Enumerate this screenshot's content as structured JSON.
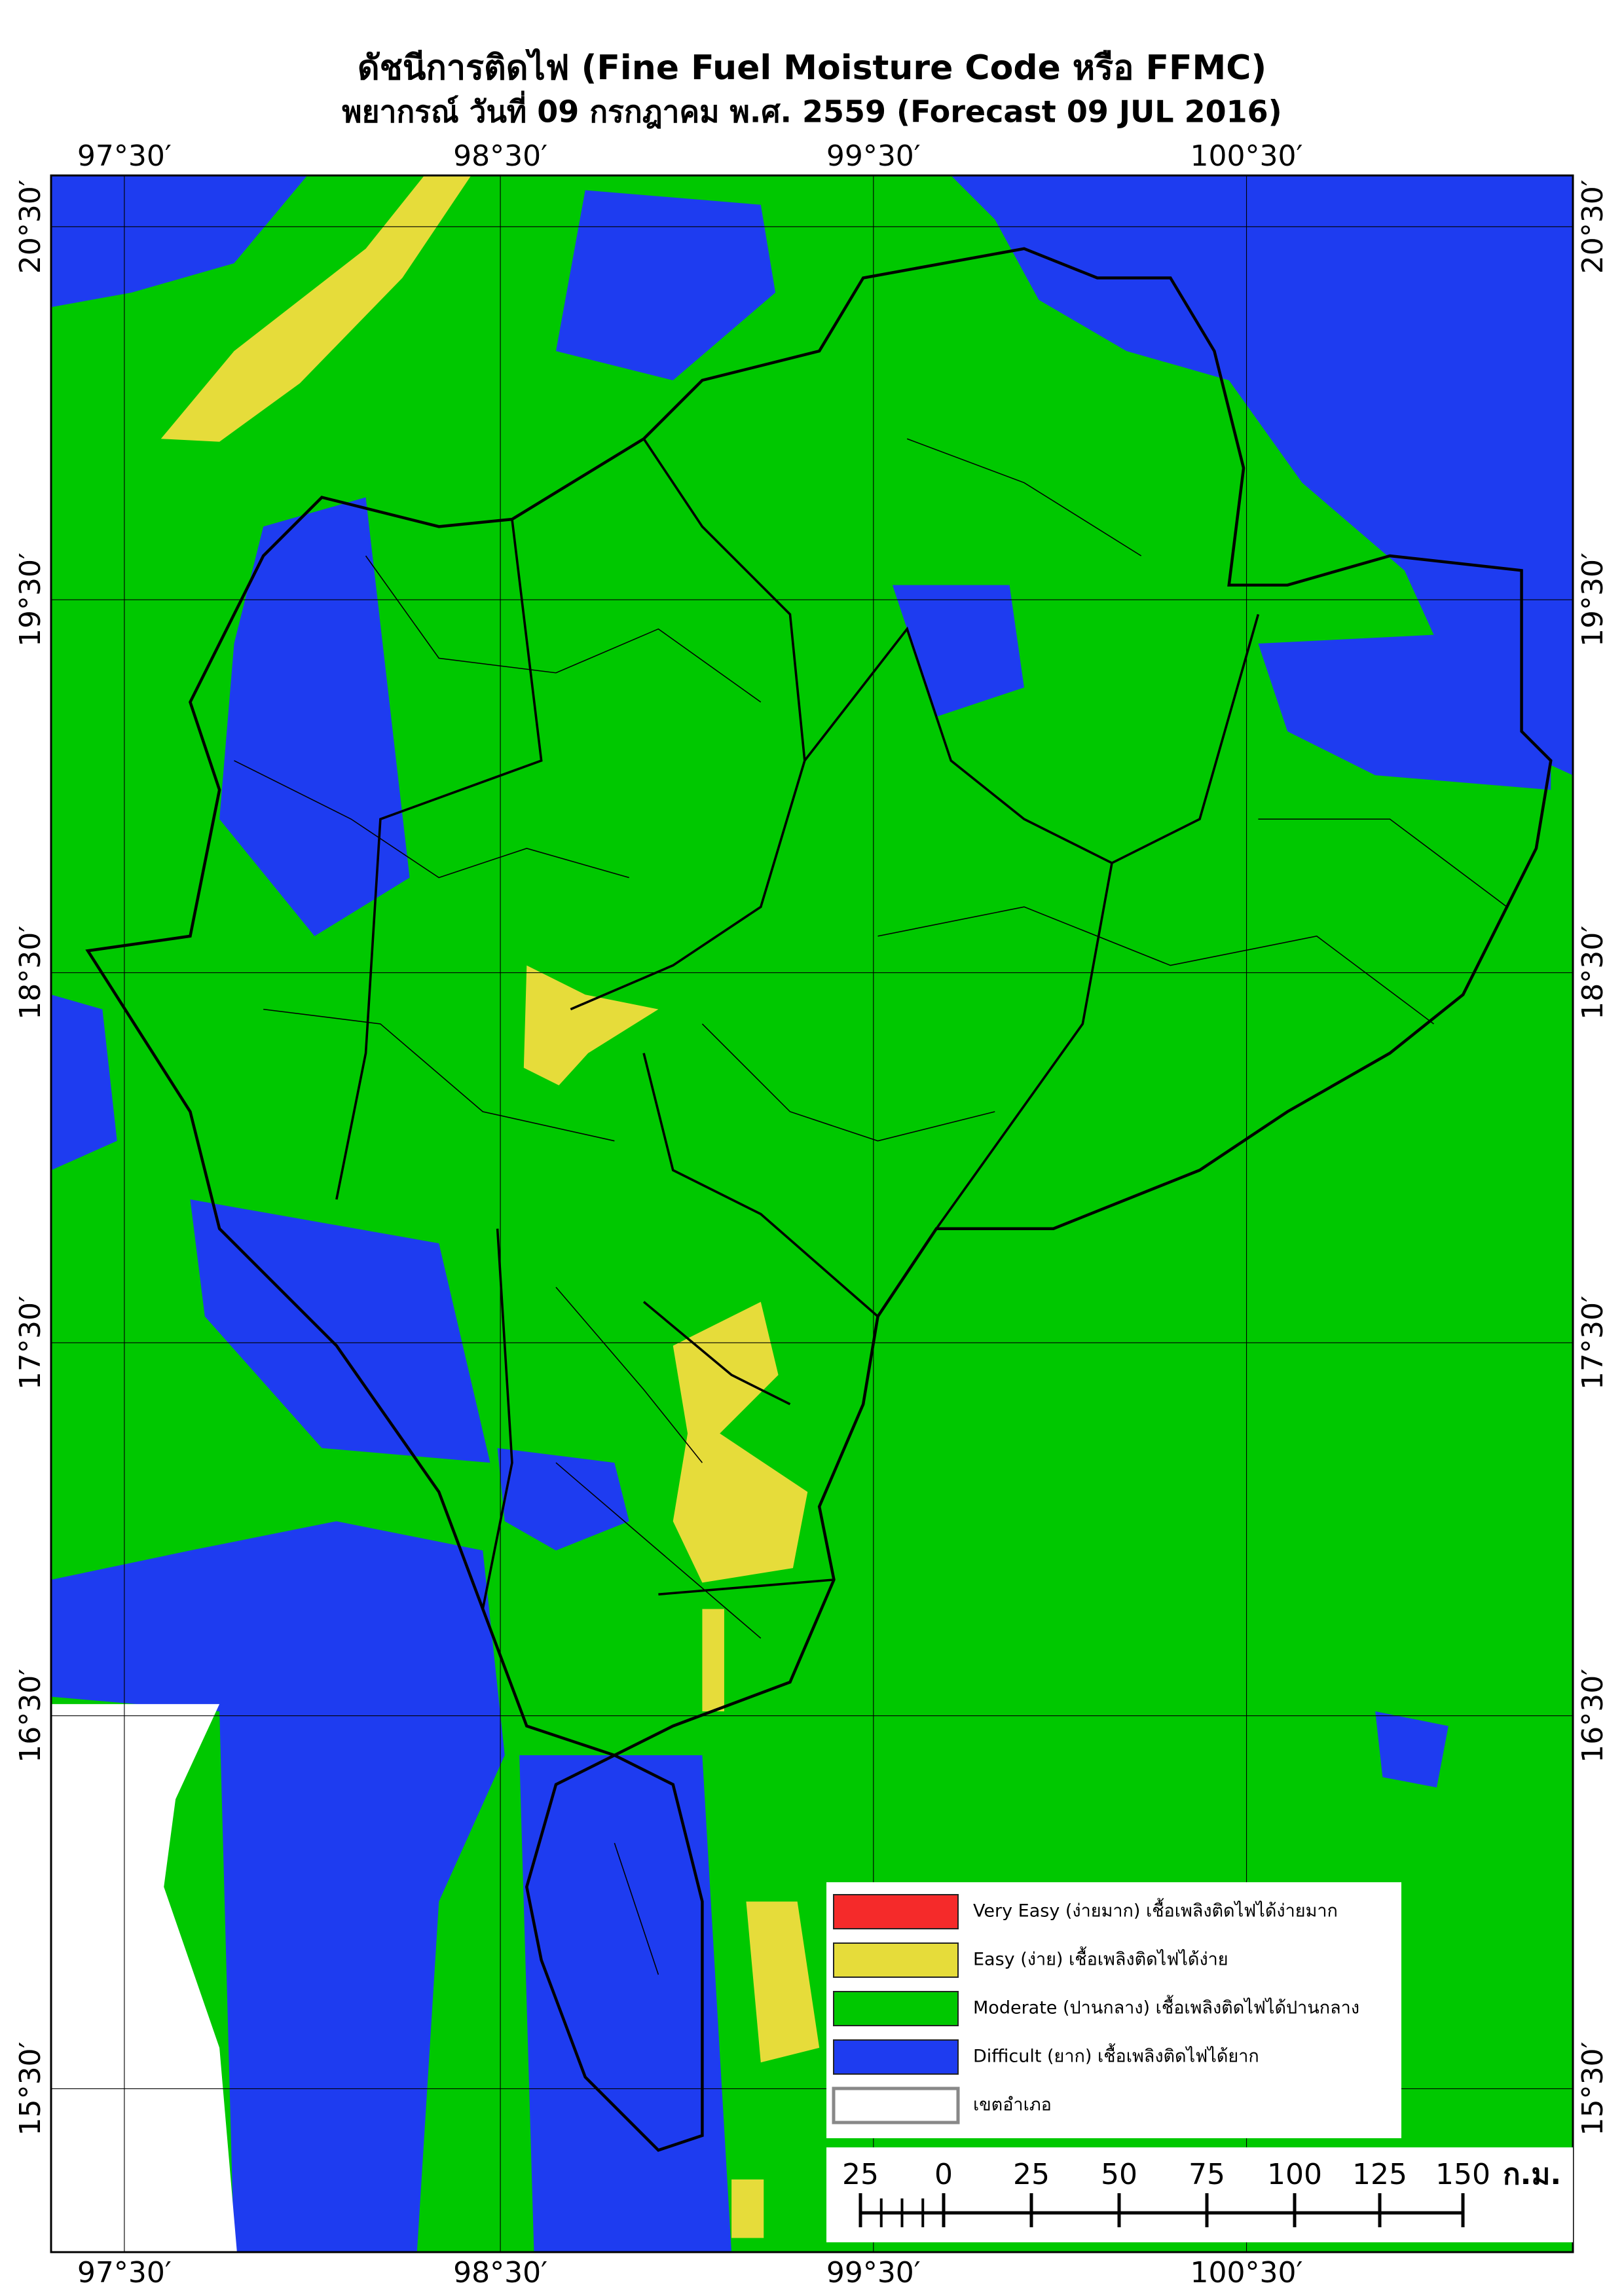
{
  "header": {
    "title": "ดัชนีการติดไฟ (Fine Fuel Moisture Code หรือ FFMC)",
    "subtitle": "พยากรณ์ วันที่ 09 กรกฎาคม พ.ศ. 2559 (Forecast 09 JUL 2016)"
  },
  "graticule": {
    "longitudes": [
      "97°30′",
      "98°30′",
      "99°30′",
      "100°30′"
    ],
    "latitudes": [
      "20°30′",
      "19°30′",
      "18°30′",
      "17°30′",
      "16°30′",
      "15°30′"
    ]
  },
  "legend": {
    "items": [
      {
        "label": "Very Easy (ง่ายมาก) เชื้อเพลิงติดไฟได้ง่ายมาก",
        "color": "#f52a2a"
      },
      {
        "label": "Easy (ง่าย) เชื้อเพลิงติดไฟได้ง่าย",
        "color": "#e6dc3a"
      },
      {
        "label": "Moderate (ปานกลาง) เชื้อเพลิงติดไฟได้ปานกลาง",
        "color": "#00c800"
      },
      {
        "label": "Difficult (ยาก) เชื้อเพลิงติดไฟได้ยาก",
        "color": "#1e3cf0"
      },
      {
        "label": "เขตอำเภอ",
        "color": "#ffffff"
      }
    ]
  },
  "scale_bar": {
    "labels": [
      "25",
      "0",
      "25",
      "50",
      "75",
      "100",
      "125",
      "150"
    ],
    "unit": "ก.ม."
  }
}
